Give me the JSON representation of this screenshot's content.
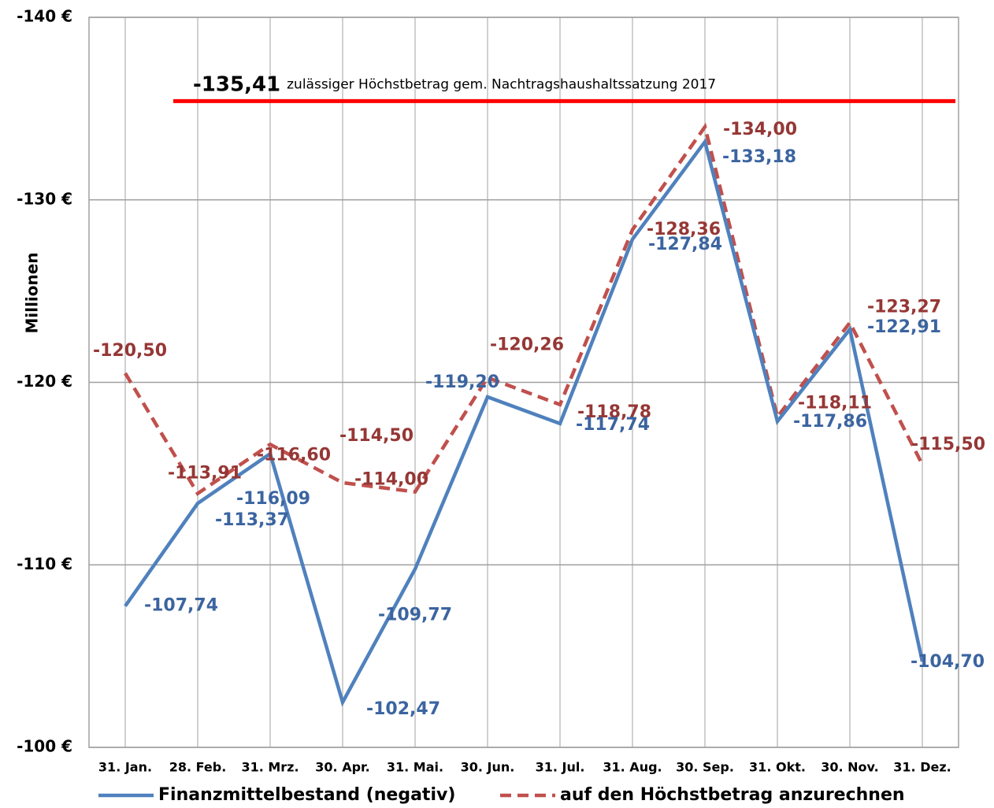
{
  "chart_data": {
    "type": "line",
    "y_label": "Millionen",
    "categories": [
      "31. Jan.",
      "28. Feb.",
      "31. Mrz.",
      "30. Apr.",
      "31. Mai.",
      "30. Jun.",
      "31. Jul.",
      "31. Aug.",
      "30. Sep.",
      "31. Okt.",
      "30. Nov.",
      "31. Dez."
    ],
    "series": [
      {
        "name": "Finanzmittelbestand (negativ)",
        "color": "#4f81bd",
        "label_color": "#3b64a0",
        "dashed": false,
        "values": [
          -107.74,
          -113.37,
          -116.09,
          -102.47,
          -109.77,
          -119.2,
          -117.74,
          -127.84,
          -133.18,
          -117.86,
          -122.91,
          -104.7
        ],
        "value_labels": [
          "-107,74",
          "-113,37",
          "-116,09",
          "-102,47",
          "-109,77",
          "-119,20",
          "-117,74",
          "-127,84",
          "-133,18",
          "-117,86",
          "-122,91",
          "-104,70"
        ]
      },
      {
        "name": "auf den Höchstbetrag anzurechnen",
        "color": "#c0504d",
        "label_color": "#953735",
        "dashed": true,
        "values": [
          -120.5,
          -113.91,
          -116.6,
          -114.5,
          -114.0,
          -120.26,
          -118.78,
          -128.36,
          -134.0,
          -118.11,
          -123.27,
          -115.5
        ],
        "value_labels": [
          "-120,50",
          "-113,91",
          "-116,60",
          "-114,50",
          "-114,00",
          "-120,26",
          "-118,78",
          "-128,36",
          "-134,00",
          "-118,11",
          "-123,27",
          "-115,50"
        ]
      }
    ],
    "reference_line": {
      "value": -135.41,
      "label": "-135,41",
      "text": "zulässiger Höchstbetrag  gem.  Nachtragshaushaltssatzung 2017",
      "color": "#ff0000"
    },
    "ylim": [
      -100,
      -140
    ],
    "yticks": [
      {
        "value": -100,
        "label": "-100 €"
      },
      {
        "value": -110,
        "label": "-110 €"
      },
      {
        "value": -120,
        "label": "-120 €"
      },
      {
        "value": -130,
        "label": "-130 €"
      },
      {
        "value": -140,
        "label": "-140 €"
      }
    ],
    "grid": true,
    "legend": "bottom"
  }
}
